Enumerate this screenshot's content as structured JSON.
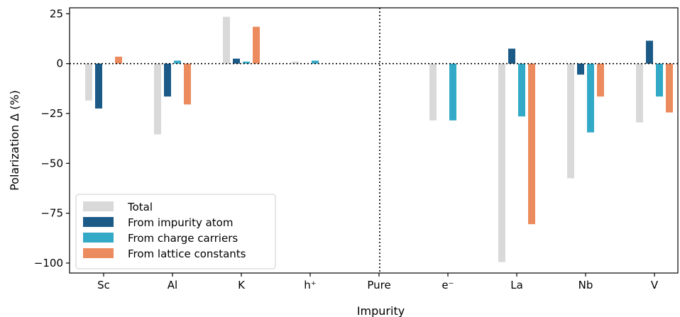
{
  "chart_data": {
    "type": "bar",
    "xlabel": "Impurity",
    "ylabel": "Polarization Δ (%)",
    "categories": [
      "Sc",
      "Al",
      "K",
      "h⁺",
      "Pure",
      "e⁻",
      "La",
      "Nb",
      "V"
    ],
    "ylim": [
      -105,
      28
    ],
    "yticks": [
      25,
      0,
      -25,
      -50,
      -75,
      -100
    ],
    "ytick_labels": [
      "25",
      "0",
      "−25",
      "−50",
      "−75",
      "−100"
    ],
    "grid": false,
    "zero_line": "dotted",
    "divider_after_category": "Pure",
    "legend_position": "lower-left",
    "series": [
      {
        "name": "Total",
        "color": "#d9d9d9",
        "values": [
          -18.5,
          -35.5,
          23.5,
          1.0,
          null,
          -28.5,
          -99.5,
          -57.5,
          -29.5
        ]
      },
      {
        "name": "From impurity atom",
        "color": "#1b5a87",
        "values": [
          -22.5,
          -16.5,
          2.5,
          0,
          null,
          0,
          7.5,
          -5.5,
          11.5
        ]
      },
      {
        "name": "From charge carriers",
        "color": "#32a9c6",
        "values": [
          0,
          1.5,
          1.0,
          1.5,
          null,
          -28.5,
          -26.5,
          -34.5,
          -16.5
        ]
      },
      {
        "name": "From lattice constants",
        "color": "#ec8b5e",
        "values": [
          3.5,
          -20.5,
          18.5,
          0,
          null,
          0,
          -80.5,
          -16.5,
          -24.5
        ]
      }
    ]
  }
}
